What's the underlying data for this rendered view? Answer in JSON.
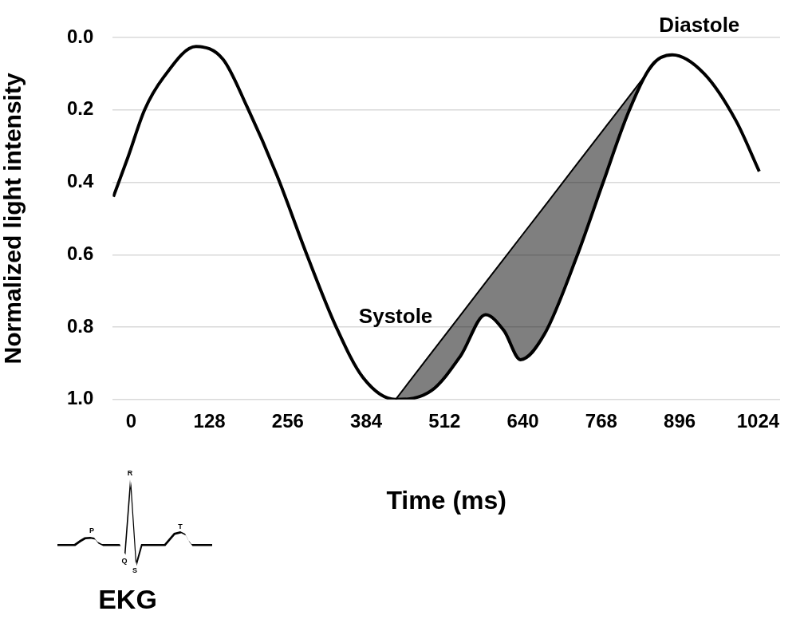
{
  "chart_data": {
    "type": "line",
    "xlabel": "Time (ms)",
    "ylabel": "Normalized light intensity",
    "xlim": [
      -30,
      1060
    ],
    "ylim": [
      1.0,
      0.0
    ],
    "xticks": [
      0,
      128,
      256,
      384,
      512,
      640,
      768,
      896,
      1024
    ],
    "yticks": [
      {
        "value": 0,
        "label": "0.0"
      },
      0.2,
      0.4,
      0.6,
      0.8,
      {
        "value": 1,
        "label": "1.0"
      }
    ],
    "grid": "y",
    "legend": false,
    "marker": "none",
    "line_style": "solid",
    "series": [
      {
        "type": "line",
        "color": "#000000",
        "x": [
          -29,
          -5,
          22,
          53,
          106,
          150,
          189,
          238,
          287,
          335,
          379,
          432,
          491,
          538,
          579,
          609,
          636,
          675,
          728,
          770,
          813,
          851,
          884,
          936,
          988,
          1026
        ],
        "values": [
          0.44,
          0.33,
          0.2,
          0.11,
          0.025,
          0.06,
          0.19,
          0.38,
          0.6,
          0.8,
          0.94,
          1.0,
          0.975,
          0.88,
          0.766,
          0.81,
          0.89,
          0.82,
          0.605,
          0.405,
          0.204,
          0.076,
          0.048,
          0.1,
          0.23,
          0.37
        ]
      },
      {
        "type": "line",
        "color": "#000000",
        "x": [
          432,
          491,
          538,
          579,
          609,
          636,
          675,
          728,
          770,
          813,
          851,
          862
        ],
        "values": [
          1.0,
          0.87,
          0.767,
          0.677,
          0.611,
          0.552,
          0.467,
          0.35,
          0.258,
          0.164,
          0.08,
          0.056
        ],
        "lower": [
          1.0,
          0.87,
          0.767,
          0.677,
          0.611,
          0.552,
          0.467,
          0.35,
          0.258,
          0.164,
          0.08,
          0.056
        ],
        "upper": [
          1.0,
          0.975,
          0.88,
          0.766,
          0.81,
          0.89,
          0.82,
          0.605,
          0.405,
          0.204,
          0.076,
          0.056
        ]
      }
    ],
    "annotations": [
      "Systole",
      "Diastole",
      "EKG",
      "P",
      "Q",
      "R",
      "S",
      "T"
    ]
  }
}
